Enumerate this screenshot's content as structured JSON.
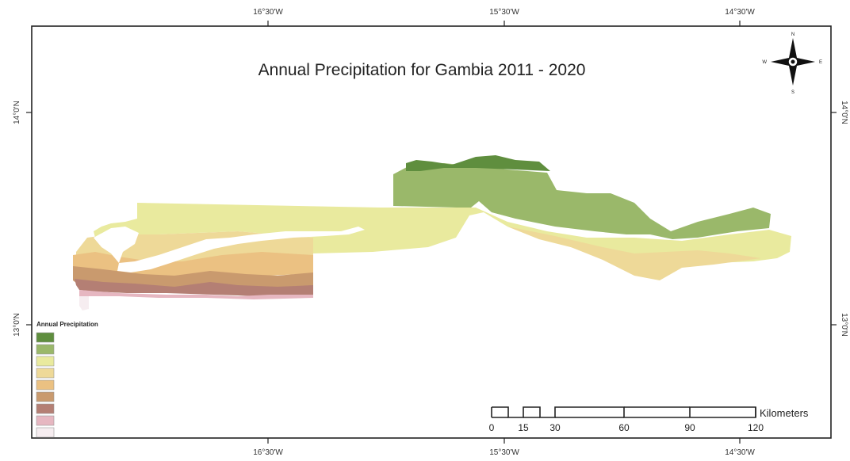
{
  "map": {
    "title": "Annual Precipitation for Gambia 2011 - 2020",
    "coordinates": {
      "top": [
        "16°30'W",
        "15°30'W",
        "14°30'W"
      ],
      "bottom": [
        "16°30'W",
        "15°30'W",
        "14°30'W"
      ],
      "left": [
        "14°0'N",
        "13°0'N"
      ],
      "right": [
        "14°0'N",
        "13°0'N"
      ]
    },
    "compass": {
      "north": "N",
      "south": "S",
      "east": "E",
      "west": "W"
    },
    "legend": {
      "title": "Annual Precipitation",
      "classes": [
        {
          "color": "#5f8e3e",
          "label": ""
        },
        {
          "color": "#9ab86a",
          "label": ""
        },
        {
          "color": "#e9ea9e",
          "label": ""
        },
        {
          "color": "#eed998",
          "label": ""
        },
        {
          "color": "#ebc182",
          "label": ""
        },
        {
          "color": "#c99a6e",
          "label": ""
        },
        {
          "color": "#b47f74",
          "label": ""
        },
        {
          "color": "#e6b7c1",
          "label": ""
        },
        {
          "color": "#f6edf0",
          "label": ""
        }
      ]
    },
    "scale_bar": {
      "ticks": [
        "0",
        "15",
        "30",
        "60",
        "90",
        "120"
      ],
      "unit": "Kilometers"
    },
    "colors": {
      "dark_green": "#5f8e3e",
      "green": "#9ab86a",
      "light_yellow": "#e9ea9e",
      "tan": "#eed998",
      "orange": "#ebc182",
      "brown": "#c99a6e",
      "red_brown": "#b47f74",
      "pink": "#e6b7c1",
      "frame": "#222222"
    }
  }
}
